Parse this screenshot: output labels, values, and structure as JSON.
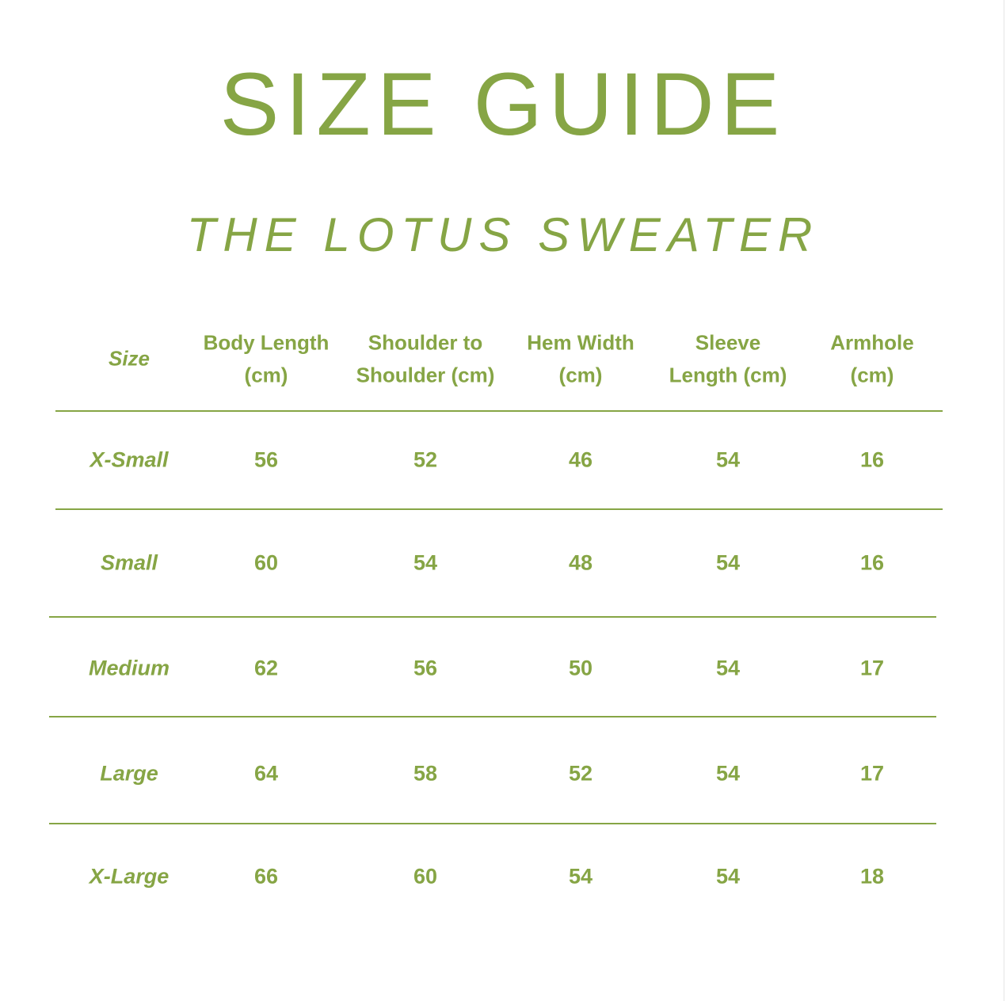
{
  "header": {
    "title": "SIZE GUIDE",
    "subtitle": "THE LOTUS SWEATER"
  },
  "table": {
    "columns": [
      [
        "Size"
      ],
      [
        "Body Length",
        "(cm)"
      ],
      [
        "Shoulder to",
        "Shoulder (cm)"
      ],
      [
        "Hem Width",
        "(cm)"
      ],
      [
        "Sleeve",
        "Length (cm)"
      ],
      [
        "Armhole",
        "(cm)"
      ]
    ],
    "rows": [
      [
        "X-Small",
        56,
        52,
        46,
        54,
        16
      ],
      [
        "Small",
        60,
        54,
        48,
        54,
        16
      ],
      [
        "Medium",
        62,
        56,
        50,
        54,
        17
      ],
      [
        "Large",
        64,
        58,
        52,
        54,
        17
      ],
      [
        "X-Large",
        66,
        60,
        54,
        54,
        18
      ]
    ]
  }
}
